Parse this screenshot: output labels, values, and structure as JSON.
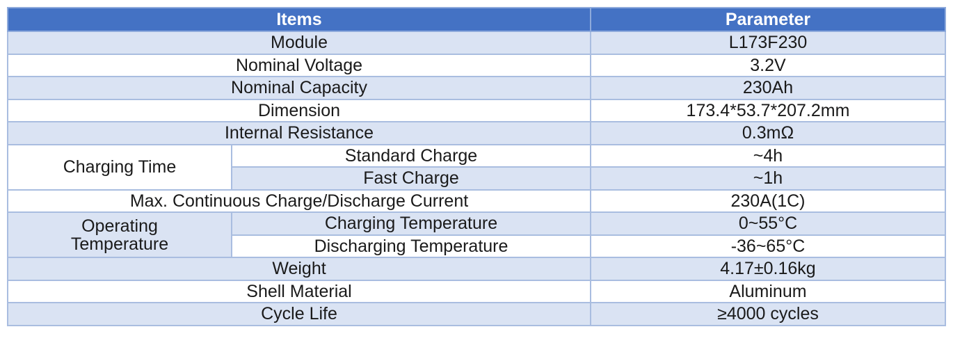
{
  "header": {
    "items": "Items",
    "parameter": "Parameter"
  },
  "rows": [
    {
      "item": "Module",
      "value": "L173F230"
    },
    {
      "item": "Nominal Voltage",
      "value": "3.2V"
    },
    {
      "item": "Nominal Capacity",
      "value": "230Ah"
    },
    {
      "item": "Dimension",
      "value": "173.4*53.7*207.2mm"
    },
    {
      "item": "Internal Resistance",
      "value": "0.3mΩ"
    }
  ],
  "charging_time": {
    "group": "Charging Time",
    "sub": [
      {
        "item": "Standard Charge",
        "value": "~4h"
      },
      {
        "item": "Fast Charge",
        "value": "~1h"
      }
    ]
  },
  "max_current": {
    "item": "Max. Continuous Charge/Discharge Current",
    "value": "230A(1C)"
  },
  "operating_temperature": {
    "group_line1": "Operating",
    "group_line2": "Temperature",
    "sub": [
      {
        "item": "Charging Temperature",
        "value": "0~55°C"
      },
      {
        "item": "Discharging Temperature",
        "value": "-36~65°C"
      }
    ]
  },
  "rows_tail": [
    {
      "item": "Weight",
      "value": "4.17±0.16kg"
    },
    {
      "item": "Shell Material",
      "value": "Aluminum"
    },
    {
      "item": "Cycle Life",
      "value": "≥4000 cycles"
    }
  ]
}
